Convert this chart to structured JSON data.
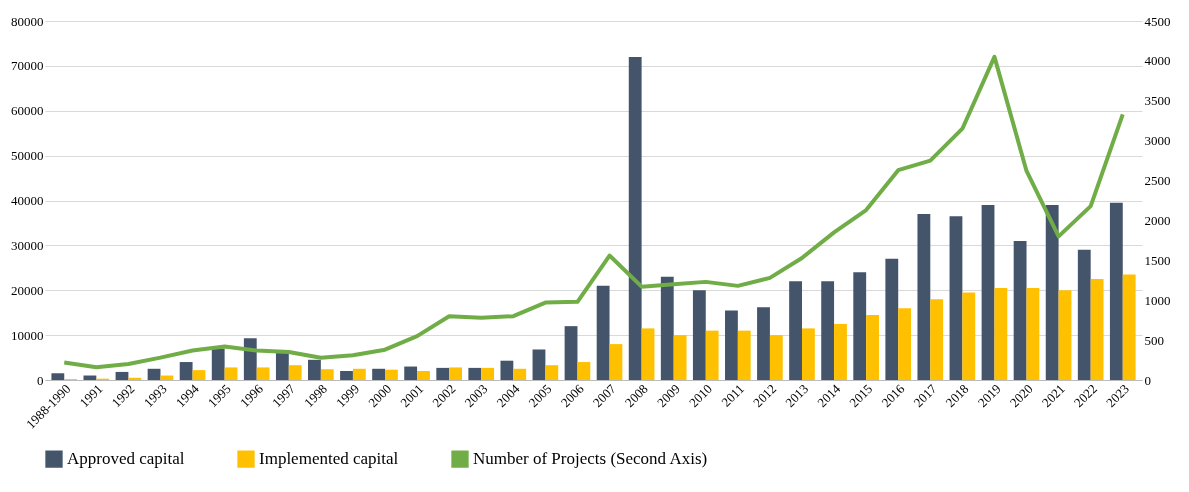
{
  "chart_data": {
    "type": "bar",
    "categories": [
      "1988-1990",
      "1991",
      "1992",
      "1993",
      "1994",
      "1995",
      "1996",
      "1997",
      "1998",
      "1999",
      "2000",
      "2001",
      "2002",
      "2003",
      "2004",
      "2005",
      "2006",
      "2007",
      "2008",
      "2009",
      "2010",
      "2011",
      "2012",
      "2013",
      "2014",
      "2015",
      "2016",
      "2017",
      "2018",
      "2019",
      "2020",
      "2021",
      "2022",
      "2023"
    ],
    "series": [
      {
        "name": "Approved capital",
        "color": "#44546a",
        "values": [
          1500,
          1000,
          1800,
          2500,
          4000,
          7000,
          9300,
          6000,
          4500,
          2000,
          2500,
          3000,
          2700,
          2700,
          4300,
          6800,
          12000,
          21000,
          72000,
          23000,
          20000,
          15500,
          16200,
          22000,
          22000,
          24000,
          27000,
          37000,
          36500,
          39000,
          31000,
          39000,
          29000,
          39500
        ]
      },
      {
        "name": "Implemented capital",
        "color": "#ffc000",
        "values": [
          200,
          300,
          500,
          1000,
          2200,
          2800,
          2800,
          3300,
          2400,
          2500,
          2300,
          2000,
          2800,
          2700,
          2500,
          3300,
          4000,
          8000,
          11500,
          10000,
          11000,
          11000,
          10000,
          11500,
          12500,
          14500,
          16000,
          18000,
          19500,
          20500,
          20500,
          20000,
          22500,
          23500
        ]
      },
      {
        "name": "Number of Projects (Second Axis)",
        "color": "#70ad47",
        "type": "line",
        "axis": "y2",
        "values": [
          220,
          160,
          200,
          280,
          370,
          420,
          370,
          350,
          280,
          310,
          380,
          550,
          800,
          780,
          800,
          970,
          980,
          1560,
          1170,
          1200,
          1230,
          1180,
          1280,
          1530,
          1850,
          2130,
          2630,
          2750,
          3150,
          4050,
          2620,
          1800,
          2180,
          3330
        ]
      }
    ],
    "ylim": [
      0,
      80000
    ],
    "yticks": [
      0,
      10000,
      20000,
      30000,
      40000,
      50000,
      60000,
      70000,
      80000
    ],
    "y2lim": [
      0,
      4500
    ],
    "y2ticks": [
      0,
      500,
      1000,
      1500,
      2000,
      2500,
      3000,
      3500,
      4000,
      4500
    ],
    "grid": "y",
    "legend": "bottom",
    "marker": "none",
    "line_style": "solid"
  }
}
